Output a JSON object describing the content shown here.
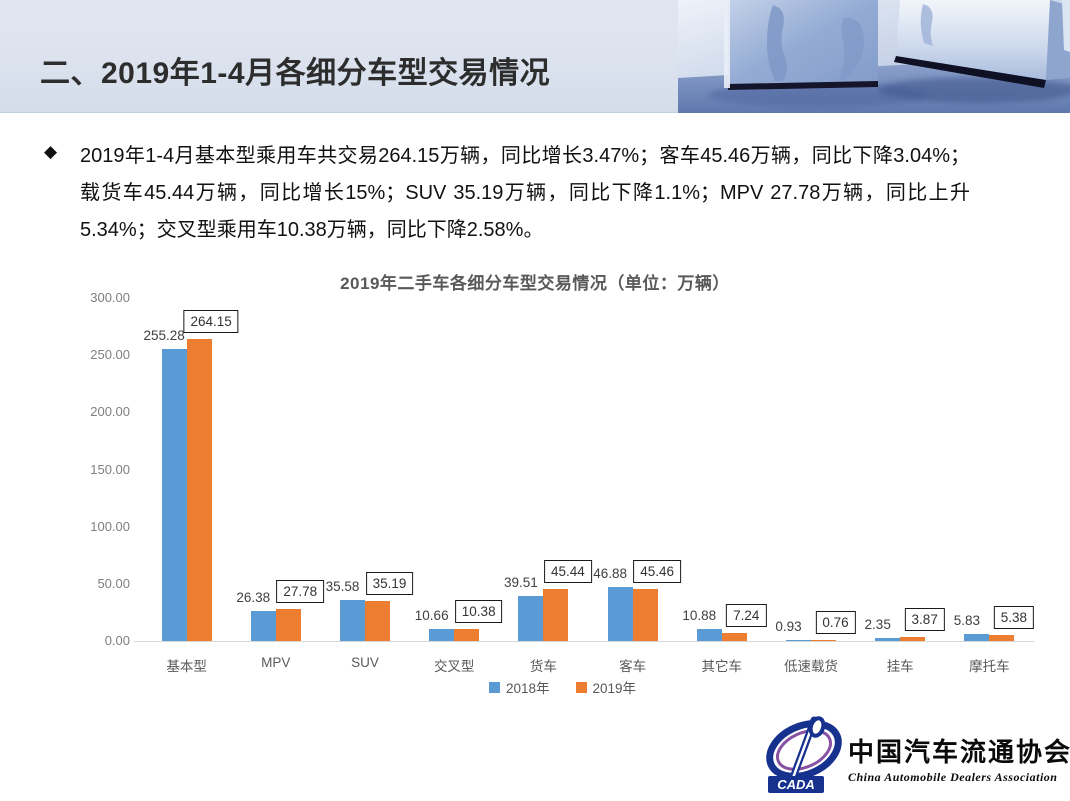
{
  "header": {
    "title": "二、2019年1-4月各细分车型交易情况"
  },
  "bullet": {
    "marker": "◆",
    "text": "2019年1-4月基本型乘用车共交易264.15万辆，同比增长3.47%；客车45.46万辆，同比下降3.04%；载货车45.44万辆，同比增长15%；SUV 35.19万辆，同比下降1.1%；MPV 27.78万辆，同比上升5.34%；交叉型乘用车10.38万辆，同比下降2.58%。"
  },
  "chart_data": {
    "type": "bar",
    "title": "2019年二手车各细分车型交易情况（单位：万辆）",
    "categories": [
      "基本型",
      "MPV",
      "SUV",
      "交叉型",
      "货车",
      "客车",
      "其它车",
      "低速载货",
      "挂车",
      "摩托车"
    ],
    "series": [
      {
        "name": "2018年",
        "color": "#5B9BD5",
        "boxed_labels": false,
        "values": [
          255.28,
          26.38,
          35.58,
          10.66,
          39.51,
          46.88,
          10.88,
          0.93,
          2.35,
          5.83
        ]
      },
      {
        "name": "2019年",
        "color": "#ED7D31",
        "boxed_labels": true,
        "values": [
          264.15,
          27.78,
          35.19,
          10.38,
          45.44,
          45.46,
          7.24,
          0.76,
          3.87,
          5.38
        ]
      }
    ],
    "ylim": [
      0,
      300
    ],
    "yticks": [
      "300.00",
      "250.00",
      "200.00",
      "150.00",
      "100.00",
      "50.00",
      "0.00"
    ],
    "grid": false,
    "legend_position": "bottom"
  },
  "footer_logo": {
    "acronym": "CADA",
    "cn": "中国汽车流通协会",
    "en": "China  Automobile  Dealers  Association",
    "blue": "#16328e",
    "purple": "#7b3f98"
  },
  "colors": {
    "series_2018": "#5B9BD5",
    "series_2019": "#ED7D31",
    "header_bg": "#dbe2ee",
    "axis_line": "#d6d6d6"
  }
}
